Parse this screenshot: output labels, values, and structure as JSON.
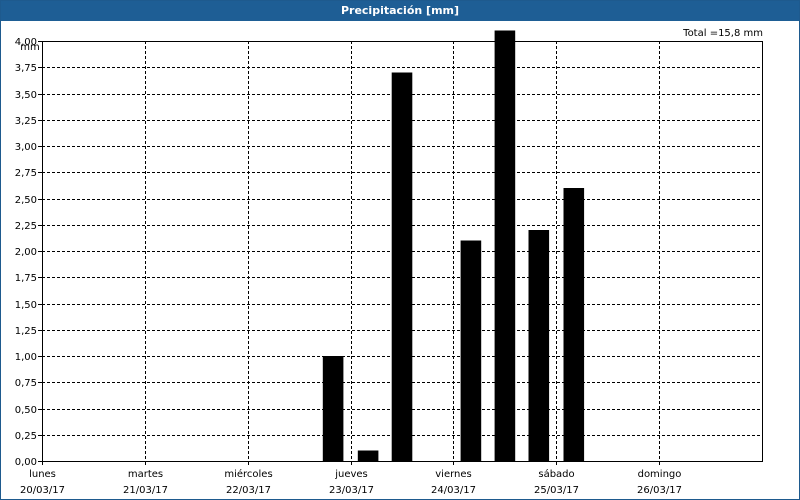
{
  "chart_data": {
    "type": "bar",
    "title": "Precipitación [mm]",
    "total_label": "Total =15,8 mm",
    "ylabel": "mm",
    "ylim": [
      0,
      4.0
    ],
    "yticks": [
      "0,00",
      "0,25",
      "0,50",
      "0,75",
      "1,00",
      "1,25",
      "1,50",
      "1,75",
      "2,00",
      "2,25",
      "2,50",
      "2,75",
      "3,00",
      "3,25",
      "3,50",
      "3,75",
      "4,00"
    ],
    "x_day_range": [
      0,
      7
    ],
    "days": [
      {
        "name": "lunes",
        "date": "20/03/17"
      },
      {
        "name": "martes",
        "date": "21/03/17"
      },
      {
        "name": "miércoles",
        "date": "22/03/17"
      },
      {
        "name": "jueves",
        "date": "23/03/17"
      },
      {
        "name": "viernes",
        "date": "24/03/17"
      },
      {
        "name": "sábado",
        "date": "25/03/17"
      },
      {
        "name": "domingo",
        "date": "26/03/17"
      }
    ],
    "bar_width_days": 0.2,
    "bars": [
      {
        "day": 2.83,
        "value": 1.0
      },
      {
        "day": 3.17,
        "value": 0.1
      },
      {
        "day": 3.5,
        "value": 3.7
      },
      {
        "day": 4.17,
        "value": 2.1
      },
      {
        "day": 4.5,
        "value": 4.1
      },
      {
        "day": 4.83,
        "value": 2.2
      },
      {
        "day": 5.17,
        "value": 2.6
      }
    ],
    "grid": true,
    "bar_color": "#000000"
  }
}
